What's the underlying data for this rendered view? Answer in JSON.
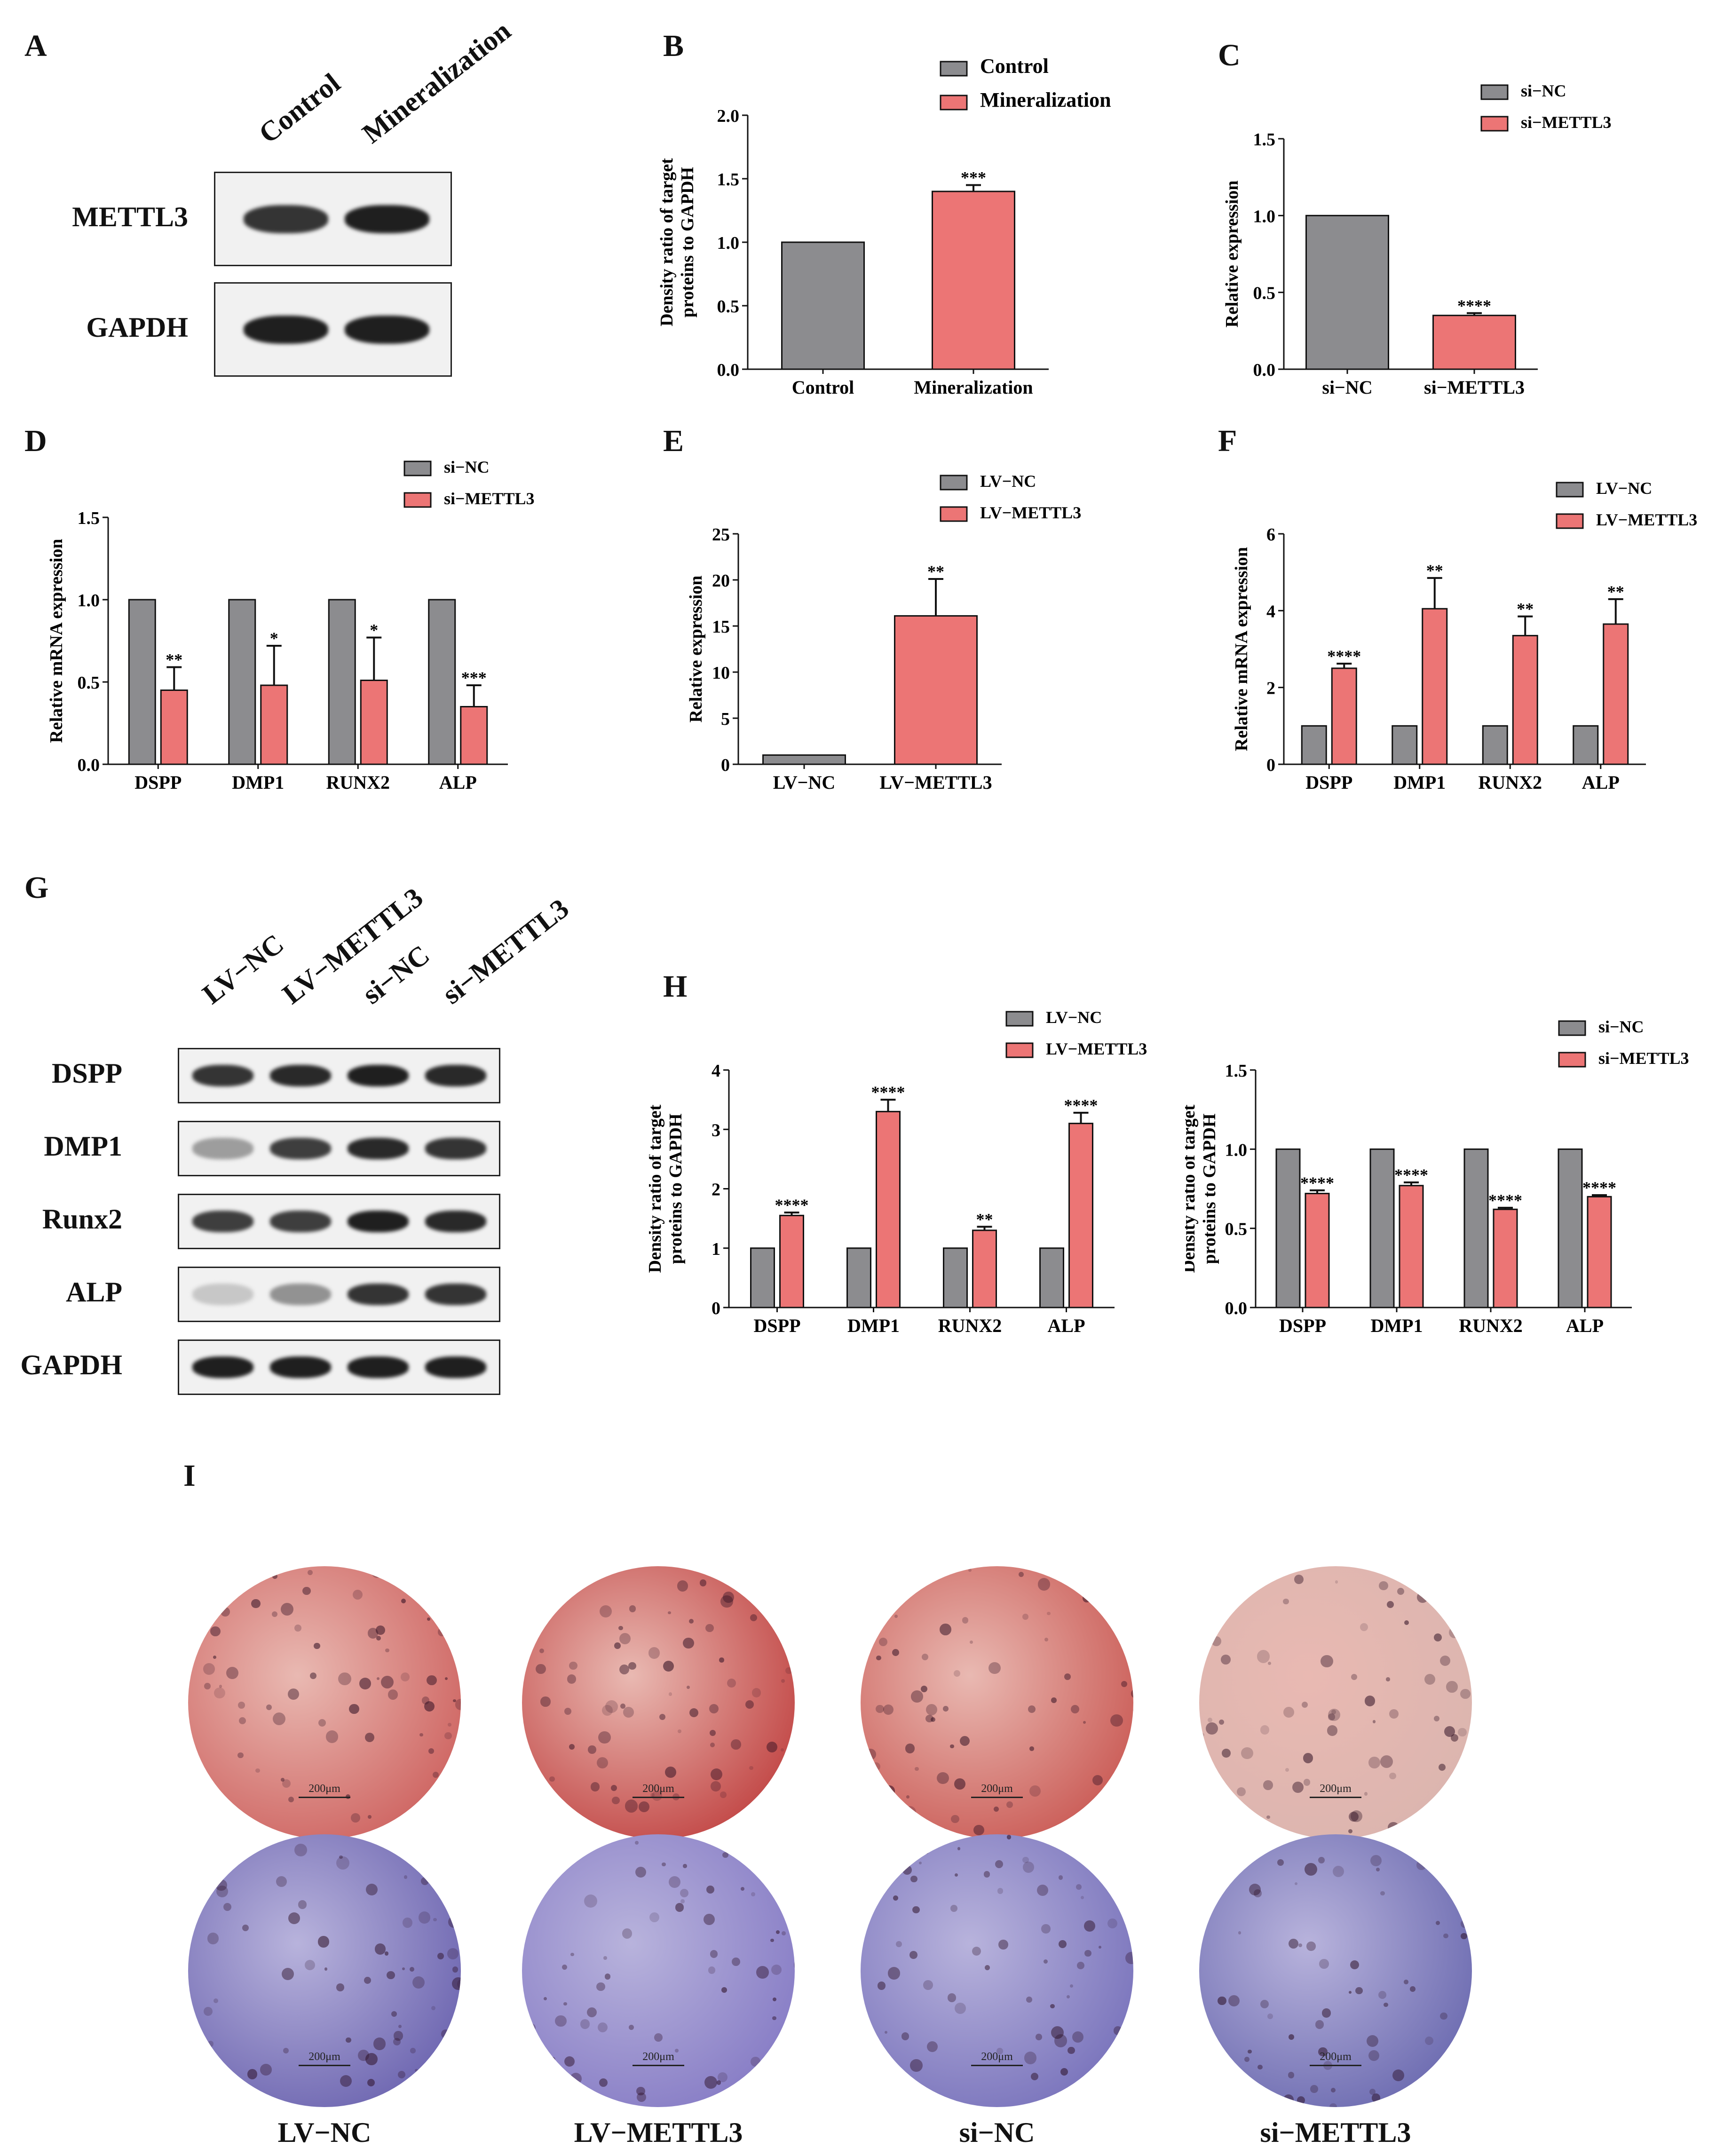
{
  "panels": {
    "A": "A",
    "B": "B",
    "C": "C",
    "D": "D",
    "E": "E",
    "F": "F",
    "G": "G",
    "H": "H",
    "I": "I"
  },
  "colors": {
    "control": "#8c8c8f",
    "treated": "#ec7575"
  },
  "blotA": {
    "lanes": [
      "Control",
      "Mineralization"
    ],
    "rows": [
      {
        "label": "METTL3",
        "intensity": [
          0.85,
          0.95
        ]
      },
      {
        "label": "GAPDH",
        "intensity": [
          0.95,
          0.95
        ]
      }
    ]
  },
  "blotG": {
    "lanes": [
      "LV−NC",
      "LV−METTL3",
      "si−NC",
      "si−METTL3"
    ],
    "rows": [
      {
        "label": "DSPP",
        "intensity": [
          0.85,
          0.9,
          0.95,
          0.9
        ]
      },
      {
        "label": "DMP1",
        "intensity": [
          0.35,
          0.8,
          0.9,
          0.85
        ]
      },
      {
        "label": "Runx2",
        "intensity": [
          0.8,
          0.8,
          0.95,
          0.9
        ]
      },
      {
        "label": "ALP",
        "intensity": [
          0.15,
          0.4,
          0.85,
          0.85
        ]
      },
      {
        "label": "GAPDH",
        "intensity": [
          0.95,
          0.95,
          0.95,
          0.95
        ]
      }
    ]
  },
  "chart_data": [
    {
      "panel": "B",
      "type": "bar",
      "categories": [
        "Control",
        "Mineralization"
      ],
      "values": [
        1.0,
        1.4
      ],
      "errors": [
        0,
        0.05
      ],
      "sig": [
        "",
        "***"
      ],
      "legend": [
        "Control",
        "Mineralization"
      ],
      "ylabel": "Density ratio of target\nproteins to GAPDH",
      "ylim": [
        0,
        2.0
      ],
      "yticks": [
        "0.0",
        "0.5",
        "1.0",
        "1.5",
        "2.0"
      ]
    },
    {
      "panel": "C",
      "type": "bar",
      "categories": [
        "si−NC",
        "si−METTL3"
      ],
      "values": [
        1.0,
        0.35
      ],
      "errors": [
        0,
        0.015
      ],
      "sig": [
        "",
        "****"
      ],
      "legend": [
        "si−NC",
        "si−METTL3"
      ],
      "ylabel": "Relative expression",
      "ylim": [
        0,
        1.5
      ],
      "yticks": [
        "0.0",
        "0.5",
        "1.0",
        "1.5"
      ]
    },
    {
      "panel": "D",
      "type": "bar",
      "categories": [
        "DSPP",
        "DMP1",
        "RUNX2",
        "ALP"
      ],
      "series": [
        {
          "name": "si−NC",
          "values": [
            1,
            1,
            1,
            1
          ]
        },
        {
          "name": "si−METTL3",
          "values": [
            0.45,
            0.48,
            0.51,
            0.35
          ],
          "errors": [
            0.14,
            0.24,
            0.26,
            0.13
          ],
          "sig": [
            "**",
            "*",
            "*",
            "***"
          ]
        }
      ],
      "ylabel": "Relative mRNA expression",
      "ylim": [
        0,
        1.5
      ],
      "yticks": [
        "0.0",
        "0.5",
        "1.0",
        "1.5"
      ]
    },
    {
      "panel": "E",
      "type": "bar",
      "categories": [
        "LV−NC",
        "LV−METTL3"
      ],
      "values": [
        1.0,
        16.1
      ],
      "errors": [
        0,
        4.0
      ],
      "sig": [
        "",
        "**"
      ],
      "legend": [
        "LV−NC",
        "LV−METTL3"
      ],
      "ylabel": "Relative expression",
      "ylim": [
        0,
        25
      ],
      "yticks": [
        "0",
        "5",
        "10",
        "15",
        "20",
        "25"
      ]
    },
    {
      "panel": "F",
      "type": "bar",
      "categories": [
        "DSPP",
        "DMP1",
        "RUNX2",
        "ALP"
      ],
      "series": [
        {
          "name": "LV−NC",
          "values": [
            1,
            1,
            1,
            1
          ]
        },
        {
          "name": "LV−METTL3",
          "values": [
            2.5,
            4.05,
            3.35,
            3.65
          ],
          "errors": [
            0.12,
            0.8,
            0.5,
            0.65
          ],
          "sig": [
            "****",
            "**",
            "**",
            "**"
          ]
        }
      ],
      "ylabel": "Relative mRNA expression",
      "ylim": [
        0,
        6
      ],
      "yticks": [
        "0",
        "2",
        "4",
        "6"
      ]
    },
    {
      "panel": "H1",
      "type": "bar",
      "categories": [
        "DSPP",
        "DMP1",
        "RUNX2",
        "ALP"
      ],
      "series": [
        {
          "name": "LV−NC",
          "values": [
            1,
            1,
            1,
            1
          ]
        },
        {
          "name": "LV−METTL3",
          "values": [
            1.55,
            3.3,
            1.3,
            3.1
          ],
          "errors": [
            0.05,
            0.2,
            0.06,
            0.18
          ],
          "sig": [
            "****",
            "****",
            "**",
            "****"
          ]
        }
      ],
      "ylabel": "Density ratio of target\nproteins to GAPDH",
      "ylim": [
        0,
        4
      ],
      "yticks": [
        "0",
        "1",
        "2",
        "3",
        "4"
      ]
    },
    {
      "panel": "H2",
      "type": "bar",
      "categories": [
        "DSPP",
        "DMP1",
        "RUNX2",
        "ALP"
      ],
      "series": [
        {
          "name": "si−NC",
          "values": [
            1,
            1,
            1,
            1
          ]
        },
        {
          "name": "si−METTL3",
          "values": [
            0.72,
            0.77,
            0.62,
            0.7
          ],
          "errors": [
            0.02,
            0.02,
            0.01,
            0.01
          ],
          "sig": [
            "****",
            "****",
            "****",
            "****"
          ]
        }
      ],
      "ylabel": "Density ratio of target\nproteins to GAPDH",
      "ylim": [
        0,
        1.5
      ],
      "yticks": [
        "0.0",
        "0.5",
        "1.0",
        "1.5"
      ]
    }
  ],
  "wells": {
    "labels": [
      "LV−NC",
      "LV−METTL3",
      "si−NC",
      "si−METTL3"
    ],
    "scale": "200μm",
    "red_rows": [
      "#c8504e",
      "#b82a2a",
      "#c34540",
      "#d8b4ae"
    ],
    "blue_rows": [
      "#5b53a6",
      "#7b6fc0",
      "#6a64b4",
      "#5a5aa6"
    ]
  }
}
